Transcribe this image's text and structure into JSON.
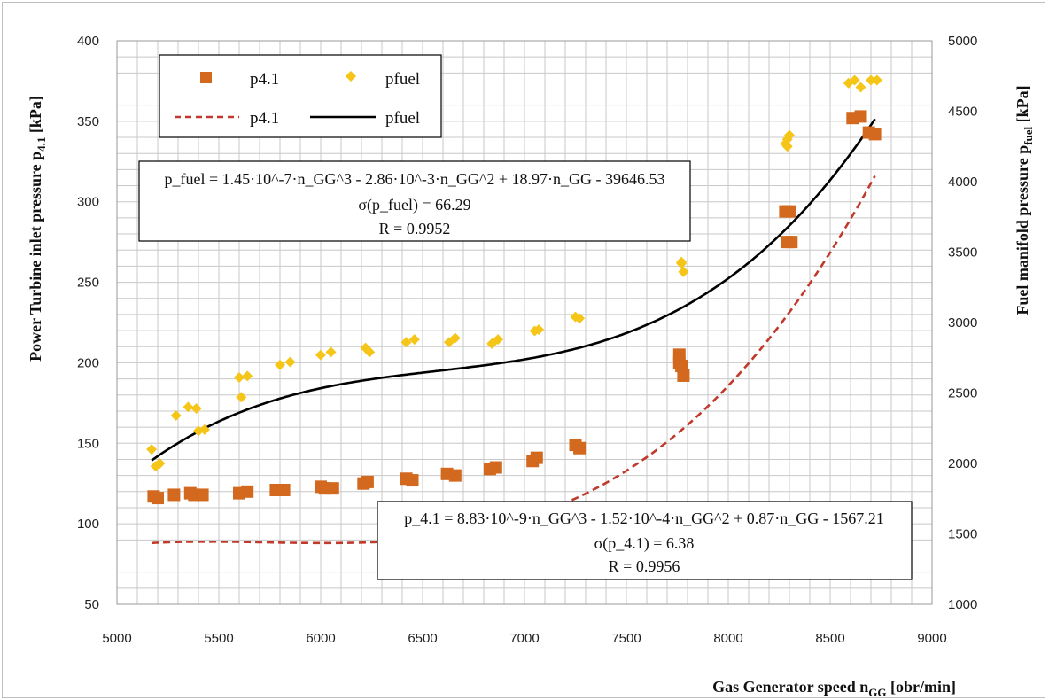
{
  "chart_data": {
    "type": "scatter",
    "xlabel": {
      "main": "Gas Generator speed n",
      "sub": "GG",
      "unit": " [obr/min]"
    },
    "ylabel_left": {
      "main": "Power Turbine inlet pressure p",
      "sub": "4.1",
      "unit": " [kPa]"
    },
    "ylabel_right": {
      "main": "Fuel manifold pressure p",
      "sub": "fuel",
      "unit": " [kPa]"
    },
    "xlim": [
      5000,
      9000
    ],
    "ylim_left": [
      50,
      400
    ],
    "ylim_right": [
      1000,
      5000
    ],
    "xticks": [
      "5000",
      "5500",
      "6000",
      "6500",
      "7000",
      "7500",
      "8000",
      "8500",
      "9000"
    ],
    "yticks_left": [
      "400",
      "350",
      "300",
      "250",
      "200",
      "150",
      "100",
      "50"
    ],
    "yticks_right": [
      "5000",
      "4500",
      "4000",
      "3500",
      "3000",
      "2500",
      "2000",
      "1500",
      "1000"
    ],
    "grid": true,
    "legend_position": "top-left",
    "legend": {
      "p41_marker": "p4.1",
      "pfuel_marker": "pfuel",
      "p41_line": "p4.1",
      "pfuel_line": "pfuel"
    },
    "series": [
      {
        "name": "p4.1",
        "axis": "left",
        "marker": "square",
        "color": "#d2691e",
        "x": [
          5180,
          5200,
          5280,
          5360,
          5380,
          5420,
          5600,
          5640,
          5780,
          5820,
          6000,
          6020,
          6060,
          6210,
          6230,
          6420,
          6450,
          6620,
          6660,
          6830,
          6860,
          7040,
          7060,
          7250,
          7270,
          7760,
          7770,
          7780,
          7760,
          8280,
          8300,
          8290,
          8310,
          8610,
          8650,
          8690,
          8720
        ],
        "y": [
          117,
          116,
          118,
          119,
          118,
          118,
          119,
          120,
          121,
          121,
          123,
          122,
          122,
          125,
          126,
          128,
          127,
          131,
          130,
          134,
          135,
          139,
          141,
          149,
          147,
          205,
          198,
          192,
          200,
          294,
          294,
          275,
          275,
          352,
          353,
          343,
          342
        ]
      },
      {
        "name": "pfuel",
        "axis": "right",
        "marker": "diamond",
        "color": "#f5c518",
        "x": [
          5170,
          5190,
          5210,
          5290,
          5350,
          5390,
          5400,
          5430,
          5600,
          5610,
          5640,
          5800,
          5850,
          6000,
          6050,
          6220,
          6240,
          6420,
          6460,
          6630,
          6660,
          6840,
          6870,
          7050,
          7070,
          7250,
          7270,
          7770,
          7780,
          7770,
          8280,
          8290,
          8300,
          8290,
          8590,
          8620,
          8650,
          8700,
          8730
        ],
        "y": [
          2100,
          1980,
          2000,
          2340,
          2400,
          2390,
          2230,
          2240,
          2610,
          2470,
          2620,
          2700,
          2720,
          2770,
          2790,
          2820,
          2790,
          2860,
          2880,
          2860,
          2890,
          2850,
          2880,
          2940,
          2950,
          3040,
          3030,
          3430,
          3360,
          3420,
          4270,
          4250,
          4330,
          4300,
          4700,
          4720,
          4670,
          4720,
          4720
        ]
      }
    ],
    "fits": [
      {
        "name": "p4.1",
        "axis": "left",
        "style": "dashed",
        "color": "#c0392b",
        "coeffs": [
          8.83e-09,
          -0.000152,
          0.87,
          -1567.21
        ],
        "x_range": [
          5170,
          8720
        ]
      },
      {
        "name": "pfuel",
        "axis": "right",
        "style": "solid",
        "color": "#000000",
        "coeffs": [
          1.45e-07,
          -0.00286,
          18.97,
          -39646.53
        ],
        "x_range": [
          5170,
          8720
        ]
      }
    ],
    "annotations": {
      "pfuel_box": {
        "line1": "p_fuel = 1.45·10^-7·n_GG^3 - 2.86·10^-3·n_GG^2 + 18.97·n_GG - 39646.53",
        "line2": "σ(p_fuel) = 66.29",
        "line3": "R = 0.9952"
      },
      "p41_box": {
        "line1": "p_4.1 = 8.83·10^-9·n_GG^3 - 1.52·10^-4·n_GG^2 + 0.87·n_GG - 1567.21",
        "line2": "σ(p_4.1) = 6.38",
        "line3": "R = 0.9956"
      }
    }
  }
}
